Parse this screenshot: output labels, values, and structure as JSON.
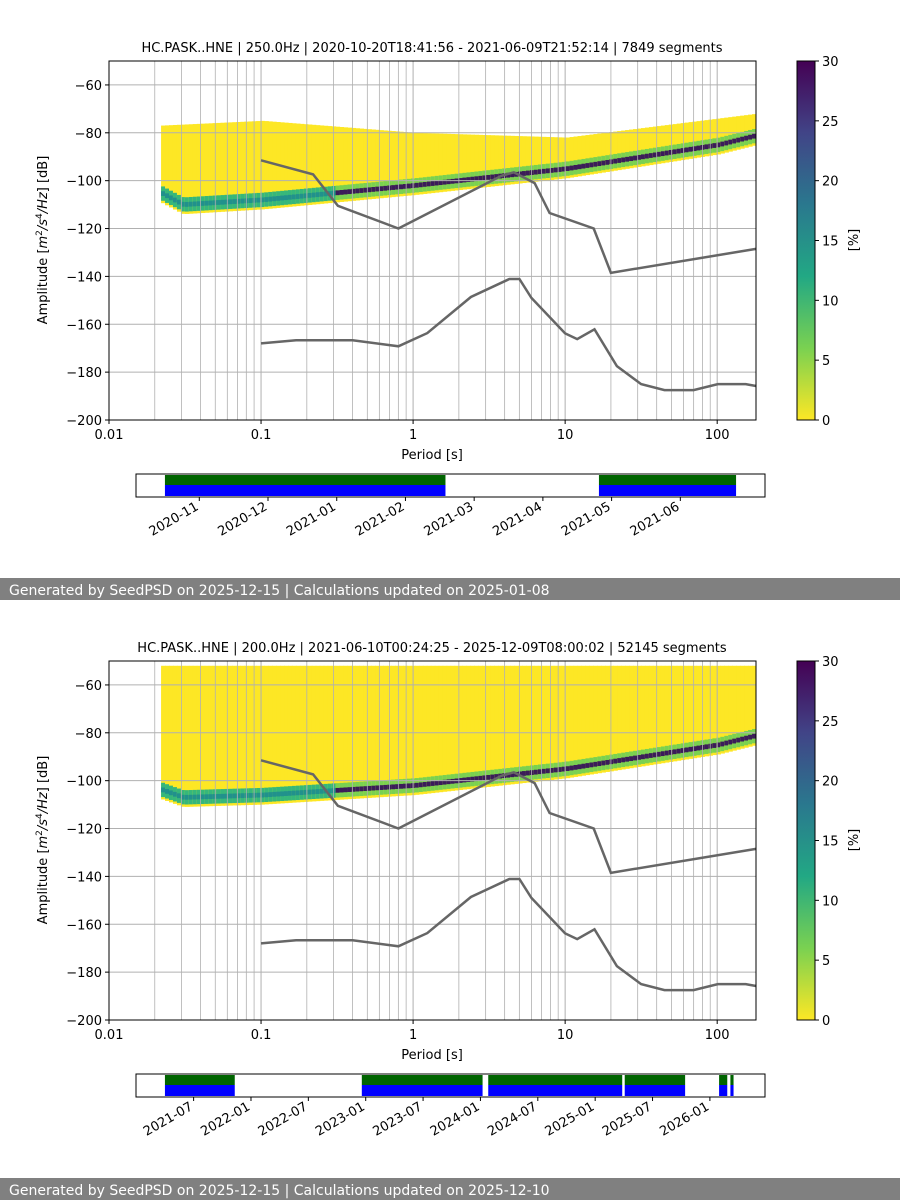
{
  "colors": {
    "footer_bg": "#808080",
    "noise_model": "#666666",
    "grid": "#b0b0b0",
    "timeline_top": "#006400",
    "timeline_bottom": "#0000ff"
  },
  "chart_data": [
    {
      "type": "heatmap",
      "title": "HC.PASK..HNE | 250.0Hz | 2020-10-20T18:41:56 - 2021-06-09T21:52:14 | 7849 segments",
      "xlabel": "Period [s]",
      "ylabel": "Amplitude [m²/s⁴/Hz] [dB]",
      "x_scale": "log",
      "xlim": [
        0.01,
        180
      ],
      "ylim": [
        -200,
        -50
      ],
      "x_ticks": [
        {
          "value": 0.01,
          "label": "0.01"
        },
        {
          "value": 0.1,
          "label": "0.1"
        },
        {
          "value": 1,
          "label": "1"
        },
        {
          "value": 10,
          "label": "10"
        },
        {
          "value": 100,
          "label": "100"
        }
      ],
      "y_ticks": [
        {
          "value": -60,
          "label": "−60"
        },
        {
          "value": -80,
          "label": "−80"
        },
        {
          "value": -100,
          "label": "−100"
        },
        {
          "value": -120,
          "label": "−120"
        },
        {
          "value": -140,
          "label": "−140"
        },
        {
          "value": -160,
          "label": "−160"
        },
        {
          "value": -180,
          "label": "−180"
        },
        {
          "value": -200,
          "label": "−200"
        }
      ],
      "colorbar": {
        "label": "[%]",
        "range": [
          0,
          30
        ],
        "ticks": [
          "0",
          "5",
          "10",
          "15",
          "20",
          "25",
          "30"
        ],
        "colormap": "viridis_r"
      },
      "psd_mode": [
        [
          0.02,
          -104
        ],
        [
          0.03,
          -110
        ],
        [
          0.1,
          -108
        ],
        [
          1,
          -102
        ],
        [
          10,
          -95
        ],
        [
          100,
          -85
        ],
        [
          180,
          -81
        ]
      ],
      "psd_spread": {
        "low_period_lower": -114,
        "upper_envelope": [
          [
            0.01,
            -78
          ],
          [
            0.1,
            -75
          ],
          [
            1,
            -80
          ],
          [
            10,
            -82
          ],
          [
            180,
            -72
          ]
        ]
      },
      "noise_models": [
        {
          "name": "",
          "points": [
            [
              0.1,
              -91.5
            ],
            [
              0.22,
              -97.4
            ],
            [
              0.32,
              -110.5
            ],
            [
              0.8,
              -120
            ],
            [
              3.8,
              -98
            ],
            [
              4.6,
              -96.5
            ],
            [
              6.3,
              -101
            ],
            [
              7.9,
              -113.5
            ],
            [
              15.4,
              -120
            ],
            [
              20,
              -138.5
            ],
            [
              180,
              -128.5
            ]
          ]
        },
        {
          "name": "",
          "points": [
            [
              0.1,
              -168
            ],
            [
              0.17,
              -166.7
            ],
            [
              0.4,
              -166.7
            ],
            [
              0.8,
              -169.2
            ],
            [
              1.24,
              -163.7
            ],
            [
              2.4,
              -148.6
            ],
            [
              4.3,
              -141.1
            ],
            [
              5,
              -141.1
            ],
            [
              6,
              -149
            ],
            [
              10,
              -163.8
            ],
            [
              12,
              -166.2
            ],
            [
              15.6,
              -162.1
            ],
            [
              21.9,
              -177.5
            ],
            [
              31.6,
              -185
            ],
            [
              45,
              -187.5
            ],
            [
              70,
              -187.5
            ],
            [
              101,
              -185
            ],
            [
              154,
              -185
            ],
            [
              180,
              -185.8
            ]
          ]
        }
      ],
      "timeline": {
        "ticks": [
          "2020-11",
          "2020-12",
          "2021-01",
          "2021-02",
          "2021-03",
          "2021-04",
          "2021-05",
          "2021-06"
        ],
        "coverage_fraction": [
          [
            0.046,
            0.492
          ],
          [
            0.736,
            0.954
          ]
        ]
      }
    },
    {
      "type": "heatmap",
      "title": "HC.PASK..HNE | 200.0Hz | 2021-06-10T00:24:25 - 2025-12-09T08:00:02 | 52145 segments",
      "xlabel": "Period [s]",
      "ylabel": "Amplitude [m²/s⁴/Hz] [dB]",
      "x_scale": "log",
      "xlim": [
        0.01,
        180
      ],
      "ylim": [
        -200,
        -50
      ],
      "x_ticks": [
        {
          "value": 0.01,
          "label": "0.01"
        },
        {
          "value": 0.1,
          "label": "0.1"
        },
        {
          "value": 1,
          "label": "1"
        },
        {
          "value": 10,
          "label": "10"
        },
        {
          "value": 100,
          "label": "100"
        }
      ],
      "y_ticks": [
        {
          "value": -60,
          "label": "−60"
        },
        {
          "value": -80,
          "label": "−80"
        },
        {
          "value": -100,
          "label": "−100"
        },
        {
          "value": -120,
          "label": "−120"
        },
        {
          "value": -140,
          "label": "−140"
        },
        {
          "value": -160,
          "label": "−160"
        },
        {
          "value": -180,
          "label": "−180"
        },
        {
          "value": -200,
          "label": "−200"
        }
      ],
      "colorbar": {
        "label": "[%]",
        "range": [
          0,
          30
        ],
        "ticks": [
          "0",
          "5",
          "10",
          "15",
          "20",
          "25",
          "30"
        ],
        "colormap": "viridis_r"
      },
      "psd_mode": [
        [
          0.015,
          -100
        ],
        [
          0.03,
          -107
        ],
        [
          0.1,
          -106
        ],
        [
          1,
          -102
        ],
        [
          10,
          -95
        ],
        [
          100,
          -85
        ],
        [
          180,
          -81
        ]
      ],
      "psd_spread": {
        "low_period_lower": -112,
        "upper_envelope": [
          [
            0.01,
            -52
          ],
          [
            180,
            -52
          ]
        ]
      },
      "noise_models": [
        {
          "name": "",
          "points": [
            [
              0.1,
              -91.5
            ],
            [
              0.22,
              -97.4
            ],
            [
              0.32,
              -110.5
            ],
            [
              0.8,
              -120
            ],
            [
              3.8,
              -98
            ],
            [
              4.6,
              -96.5
            ],
            [
              6.3,
              -101
            ],
            [
              7.9,
              -113.5
            ],
            [
              15.4,
              -120
            ],
            [
              20,
              -138.5
            ],
            [
              180,
              -128.5
            ]
          ]
        },
        {
          "name": "",
          "points": [
            [
              0.1,
              -168
            ],
            [
              0.17,
              -166.7
            ],
            [
              0.4,
              -166.7
            ],
            [
              0.8,
              -169.2
            ],
            [
              1.24,
              -163.7
            ],
            [
              2.4,
              -148.6
            ],
            [
              4.3,
              -141.1
            ],
            [
              5,
              -141.1
            ],
            [
              6,
              -149
            ],
            [
              10,
              -163.8
            ],
            [
              12,
              -166.2
            ],
            [
              15.6,
              -162.1
            ],
            [
              21.9,
              -177.5
            ],
            [
              31.6,
              -185
            ],
            [
              45,
              -187.5
            ],
            [
              70,
              -187.5
            ],
            [
              101,
              -185
            ],
            [
              154,
              -185
            ],
            [
              180,
              -185.8
            ]
          ]
        }
      ],
      "timeline": {
        "ticks": [
          "2021-07",
          "2022-01",
          "2022-07",
          "2023-01",
          "2023-07",
          "2024-01",
          "2024-07",
          "2025-01",
          "2025-07",
          "2026-01"
        ],
        "coverage_fraction": [
          [
            0.046,
            0.157
          ],
          [
            0.359,
            0.551
          ],
          [
            0.56,
            0.773
          ],
          [
            0.777,
            0.873
          ],
          [
            0.927,
            0.94
          ],
          [
            0.945,
            0.95
          ]
        ]
      }
    }
  ],
  "footers": [
    "Generated by SeedPSD on 2025-12-15 | Calculations updated on 2025-01-08",
    "Generated by SeedPSD on 2025-12-15 | Calculations updated on 2025-12-10"
  ]
}
